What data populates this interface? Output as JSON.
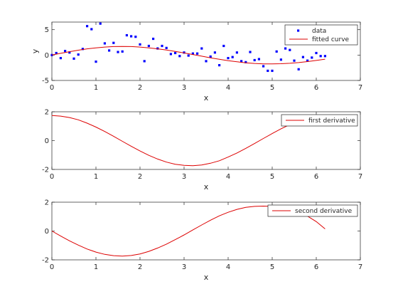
{
  "chart_data": [
    {
      "type": "scatter",
      "xlabel": "x",
      "ylabel": "y",
      "xlim": [
        0,
        7
      ],
      "ylim": [
        -5,
        6.5
      ],
      "xticks": [
        0,
        1,
        2,
        3,
        4,
        5,
        6,
        7
      ],
      "yticks": [
        -5,
        0,
        5
      ],
      "grid": false,
      "legend_position": "top-right",
      "series": [
        {
          "name": "data",
          "mode": "markers",
          "color": "#0000ff",
          "x": [
            0.0,
            0.1,
            0.2,
            0.3,
            0.4,
            0.5,
            0.6,
            0.7,
            0.8,
            0.9,
            1.0,
            1.1,
            1.2,
            1.3,
            1.4,
            1.5,
            1.6,
            1.7,
            1.8,
            1.9,
            2.0,
            2.1,
            2.2,
            2.3,
            2.4,
            2.5,
            2.6,
            2.7,
            2.8,
            2.9,
            3.0,
            3.1,
            3.2,
            3.3,
            3.4,
            3.5,
            3.6,
            3.7,
            3.8,
            3.9,
            4.0,
            4.1,
            4.2,
            4.3,
            4.4,
            4.5,
            4.6,
            4.7,
            4.8,
            4.9,
            5.0,
            5.1,
            5.2,
            5.3,
            5.4,
            5.5,
            5.6,
            5.7,
            5.8,
            5.9,
            6.0,
            6.1,
            6.2
          ],
          "y": [
            0.0,
            0.4,
            -0.6,
            0.8,
            0.5,
            -0.7,
            0.1,
            1.2,
            5.7,
            5.1,
            -1.3,
            6.2,
            2.3,
            0.9,
            2.4,
            0.6,
            0.7,
            3.9,
            3.7,
            3.6,
            2.1,
            -1.2,
            1.8,
            3.2,
            1.3,
            1.8,
            1.4,
            0.2,
            0.4,
            -0.2,
            0.5,
            -0.1,
            0.3,
            0.3,
            1.3,
            -1.2,
            -0.3,
            0.5,
            -2.0,
            1.8,
            -0.6,
            -0.4,
            0.5,
            -1.2,
            -1.4,
            0.6,
            -1.0,
            -0.8,
            -2.2,
            -3.1,
            -3.1,
            0.7,
            -0.9,
            1.3,
            1.0,
            -1.1,
            -2.8,
            -0.4,
            -1.1,
            -0.5,
            0.4,
            -0.2,
            -0.2
          ]
        },
        {
          "name": "fitted curve",
          "mode": "line",
          "color": "#dd0000",
          "x": [
            0.0,
            0.2,
            0.4,
            0.6,
            0.8,
            1.0,
            1.2,
            1.4,
            1.6,
            1.8,
            2.0,
            2.2,
            2.4,
            2.6,
            2.8,
            3.0,
            3.2,
            3.4,
            3.6,
            3.8,
            4.0,
            4.2,
            4.4,
            4.6,
            4.8,
            5.0,
            5.2,
            5.4,
            5.6,
            5.8,
            6.0,
            6.2
          ],
          "y": [
            0.0,
            0.34,
            0.67,
            0.96,
            1.22,
            1.43,
            1.58,
            1.68,
            1.71,
            1.67,
            1.58,
            1.43,
            1.23,
            0.99,
            0.72,
            0.42,
            0.1,
            -0.22,
            -0.54,
            -0.83,
            -1.1,
            -1.33,
            -1.52,
            -1.65,
            -1.73,
            -1.75,
            -1.71,
            -1.62,
            -1.48,
            -1.29,
            -1.06,
            -0.8
          ]
        }
      ]
    },
    {
      "type": "line",
      "xlabel": "x",
      "ylabel": "",
      "xlim": [
        0,
        7
      ],
      "ylim": [
        -2,
        2
      ],
      "xticks": [
        0,
        1,
        2,
        3,
        4,
        5,
        6,
        7
      ],
      "yticks": [
        -2,
        0,
        2
      ],
      "grid": false,
      "legend_position": "top-right",
      "series": [
        {
          "name": "first derivative",
          "mode": "line",
          "color": "#dd0000",
          "x": [
            0.0,
            0.2,
            0.4,
            0.6,
            0.8,
            1.0,
            1.2,
            1.4,
            1.6,
            1.8,
            2.0,
            2.2,
            2.4,
            2.6,
            2.8,
            3.0,
            3.2,
            3.4,
            3.6,
            3.8,
            4.0,
            4.2,
            4.4,
            4.6,
            4.8,
            5.0,
            5.2,
            5.4,
            5.6,
            5.8,
            6.0,
            6.2
          ],
          "y": [
            1.74,
            1.7,
            1.6,
            1.44,
            1.21,
            0.94,
            0.63,
            0.3,
            -0.05,
            -0.39,
            -0.72,
            -1.02,
            -1.28,
            -1.49,
            -1.64,
            -1.72,
            -1.74,
            -1.69,
            -1.57,
            -1.4,
            -1.14,
            -0.86,
            -0.54,
            -0.2,
            0.15,
            0.49,
            0.82,
            1.11,
            1.35,
            1.54,
            1.67,
            1.74
          ]
        }
      ]
    },
    {
      "type": "line",
      "xlabel": "x",
      "ylabel": "",
      "xlim": [
        0,
        7
      ],
      "ylim": [
        -2,
        2
      ],
      "xticks": [
        0,
        1,
        2,
        3,
        4,
        5,
        6,
        7
      ],
      "yticks": [
        -2,
        0,
        2
      ],
      "grid": false,
      "legend_position": "top-right",
      "series": [
        {
          "name": "second derivative",
          "mode": "line",
          "color": "#dd0000",
          "x": [
            0.0,
            0.2,
            0.4,
            0.6,
            0.8,
            1.0,
            1.2,
            1.4,
            1.6,
            1.8,
            2.0,
            2.2,
            2.4,
            2.6,
            2.8,
            3.0,
            3.2,
            3.4,
            3.6,
            3.8,
            4.0,
            4.2,
            4.4,
            4.6,
            4.8,
            5.0,
            5.2,
            5.4,
            5.6,
            5.8,
            6.0,
            6.2
          ],
          "y": [
            0.0,
            -0.35,
            -0.68,
            -0.98,
            -1.25,
            -1.46,
            -1.62,
            -1.71,
            -1.74,
            -1.7,
            -1.59,
            -1.41,
            -1.18,
            -0.91,
            -0.6,
            -0.27,
            0.08,
            0.42,
            0.75,
            1.05,
            1.3,
            1.5,
            1.64,
            1.71,
            1.73,
            1.71,
            1.64,
            1.51,
            1.31,
            1.03,
            0.65,
            0.15
          ]
        }
      ]
    }
  ]
}
